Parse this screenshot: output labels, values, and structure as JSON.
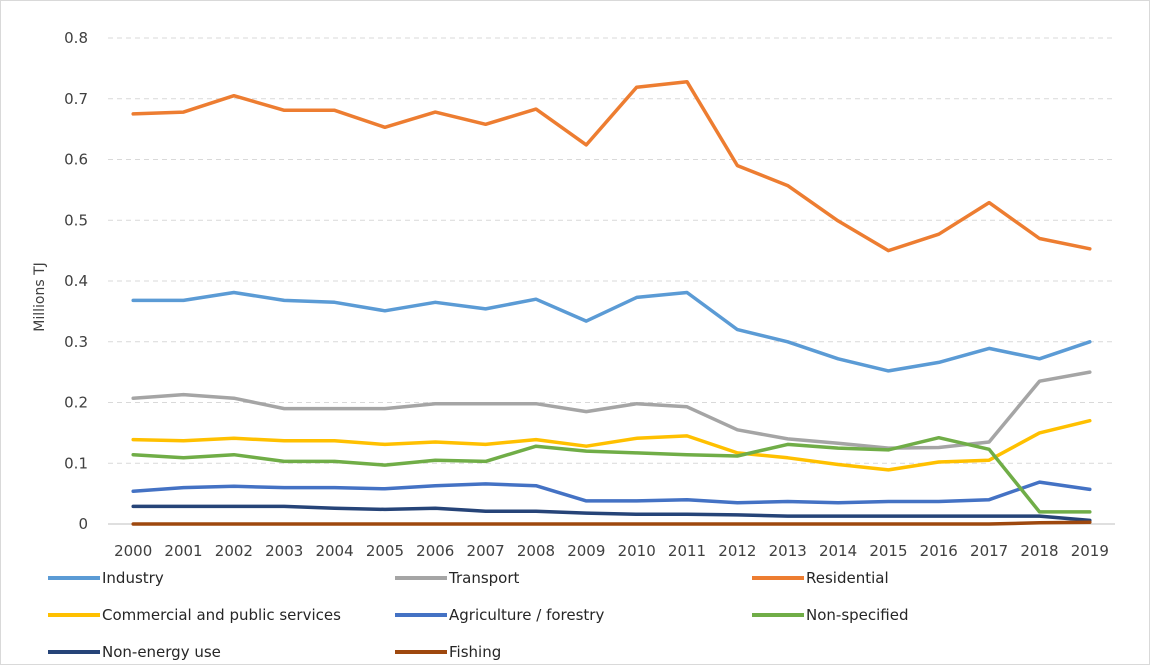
{
  "chart_data": {
    "type": "line",
    "title": "",
    "xlabel": "",
    "ylabel": "Millions TJ",
    "ylim": [
      0,
      0.8
    ],
    "yticks": [
      "0",
      "0.1",
      "0.2",
      "0.3",
      "0.4",
      "0.5",
      "0.6",
      "0.7",
      "0.8"
    ],
    "grid": true,
    "legend_position": "bottom",
    "categories": [
      "2000",
      "2001",
      "2002",
      "2003",
      "2004",
      "2005",
      "2006",
      "2007",
      "2008",
      "2009",
      "2010",
      "2011",
      "2012",
      "2013",
      "2014",
      "2015",
      "2016",
      "2017",
      "2018",
      "2019"
    ],
    "series": [
      {
        "name": "Industry",
        "color": "#5b9bd5",
        "values": [
          0.368,
          0.368,
          0.381,
          0.368,
          0.365,
          0.351,
          0.365,
          0.354,
          0.37,
          0.334,
          0.373,
          0.381,
          0.32,
          0.3,
          0.272,
          0.252,
          0.266,
          0.289,
          0.272,
          0.3
        ]
      },
      {
        "name": "Transport",
        "color": "#a5a5a5",
        "values": [
          0.207,
          0.213,
          0.207,
          0.19,
          0.19,
          0.19,
          0.198,
          0.198,
          0.198,
          0.185,
          0.198,
          0.193,
          0.155,
          0.14,
          0.133,
          0.125,
          0.126,
          0.135,
          0.235,
          0.25
        ]
      },
      {
        "name": "Residential",
        "color": "#ed7d31",
        "values": [
          0.675,
          0.678,
          0.705,
          0.681,
          0.681,
          0.653,
          0.678,
          0.658,
          0.683,
          0.624,
          0.719,
          0.728,
          0.59,
          0.557,
          0.499,
          0.45,
          0.477,
          0.529,
          0.47,
          0.453
        ]
      },
      {
        "name": "Commercial and public services",
        "color": "#ffc000",
        "values": [
          0.139,
          0.137,
          0.141,
          0.137,
          0.137,
          0.131,
          0.135,
          0.131,
          0.139,
          0.128,
          0.141,
          0.145,
          0.117,
          0.109,
          0.098,
          0.089,
          0.102,
          0.105,
          0.15,
          0.17
        ]
      },
      {
        "name": "Agriculture / forestry",
        "color": "#4472c4",
        "values": [
          0.054,
          0.06,
          0.062,
          0.06,
          0.06,
          0.058,
          0.063,
          0.066,
          0.063,
          0.038,
          0.038,
          0.04,
          0.035,
          0.037,
          0.035,
          0.037,
          0.037,
          0.04,
          0.069,
          0.057
        ]
      },
      {
        "name": "Non-specified",
        "color": "#70ad47",
        "values": [
          0.114,
          0.109,
          0.114,
          0.103,
          0.103,
          0.097,
          0.105,
          0.103,
          0.128,
          0.12,
          0.117,
          0.114,
          0.112,
          0.131,
          0.125,
          0.122,
          0.142,
          0.123,
          0.02,
          0.02
        ]
      },
      {
        "name": "Non-energy use",
        "color": "#264478",
        "values": [
          0.029,
          0.029,
          0.029,
          0.029,
          0.026,
          0.024,
          0.026,
          0.021,
          0.021,
          0.018,
          0.016,
          0.016,
          0.015,
          0.013,
          0.013,
          0.013,
          0.013,
          0.013,
          0.013,
          0.006
        ]
      },
      {
        "name": "Fishing",
        "color": "#9e480e",
        "values": [
          0.0,
          0.0,
          0.0,
          0.0,
          0.0,
          0.0,
          0.0,
          0.0,
          0.0,
          0.0,
          0.0,
          0.0,
          0.0,
          0.0,
          0.0,
          0.0,
          0.0,
          0.0,
          0.002,
          0.003
        ]
      }
    ]
  }
}
